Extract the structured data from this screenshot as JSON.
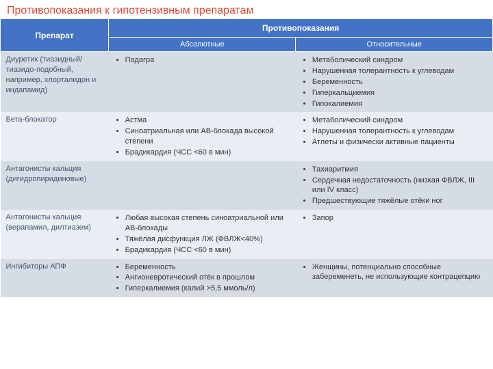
{
  "title": "Противопоказания к гипотензивным препаратам",
  "header": {
    "drug": "Препарат",
    "contra": "Противопоказания",
    "absolute": "Абсолютные",
    "relative": "Относительные"
  },
  "rows": [
    {
      "drug": "Диуретик (тиазидный/тиазидо-подобный, например, хлорталидон и индапамид)",
      "absolute": [
        "Подагра"
      ],
      "relative": [
        "Метаболический синдром",
        "Нарушенная толерантность к углеводам",
        "Беременность",
        "Гиперкальциемия",
        "Гипокалиемия"
      ]
    },
    {
      "drug": "Бета-блокатор",
      "absolute": [
        "Астма",
        "Синоатриальная или АВ-блокада высокой степени",
        "Брадикардия (ЧСС <60 в мин)"
      ],
      "relative": [
        "Метаболический синдром",
        "Нарушенная толерантность к углеводам",
        "Атлеты и физически активные пациенты"
      ]
    },
    {
      "drug": "Антагонисты кальция (дигидропиридиновые)",
      "absolute": [],
      "relative": [
        "Тахиаритмия",
        "Сердечная недостаточность (низкая ФВЛЖ, III или IV класс)",
        "Предшествующие тяжёлые отёки ног"
      ]
    },
    {
      "drug": "Антагонисты кальция (верапамил, дилтиазем)",
      "absolute": [
        "Любая высокая степень синоатриальной или АВ-блокады",
        "Тяжёлая дисфункция ЛЖ (ФВЛЖ<40%)",
        "Брадикардия (ЧСС <60 в мин)"
      ],
      "relative": [
        "Запор"
      ]
    },
    {
      "drug": "Ингибиторы АПФ",
      "absolute": [
        "Беременность",
        "Ангионевротический отёк в прошлом",
        "Гиперкалиемия (калий >5,5 ммоль/л)"
      ],
      "relative": [
        "Женщины, потенциально способные забеременеть, не использующие контрацепцию"
      ]
    }
  ],
  "colors": {
    "title": "#d94a3a",
    "header_bg": "#4472c4",
    "header_text": "#ffffff",
    "row_light": "#d6dce5",
    "row_dark": "#e9edf4",
    "text": "#333333",
    "drug_text": "#44546a"
  }
}
